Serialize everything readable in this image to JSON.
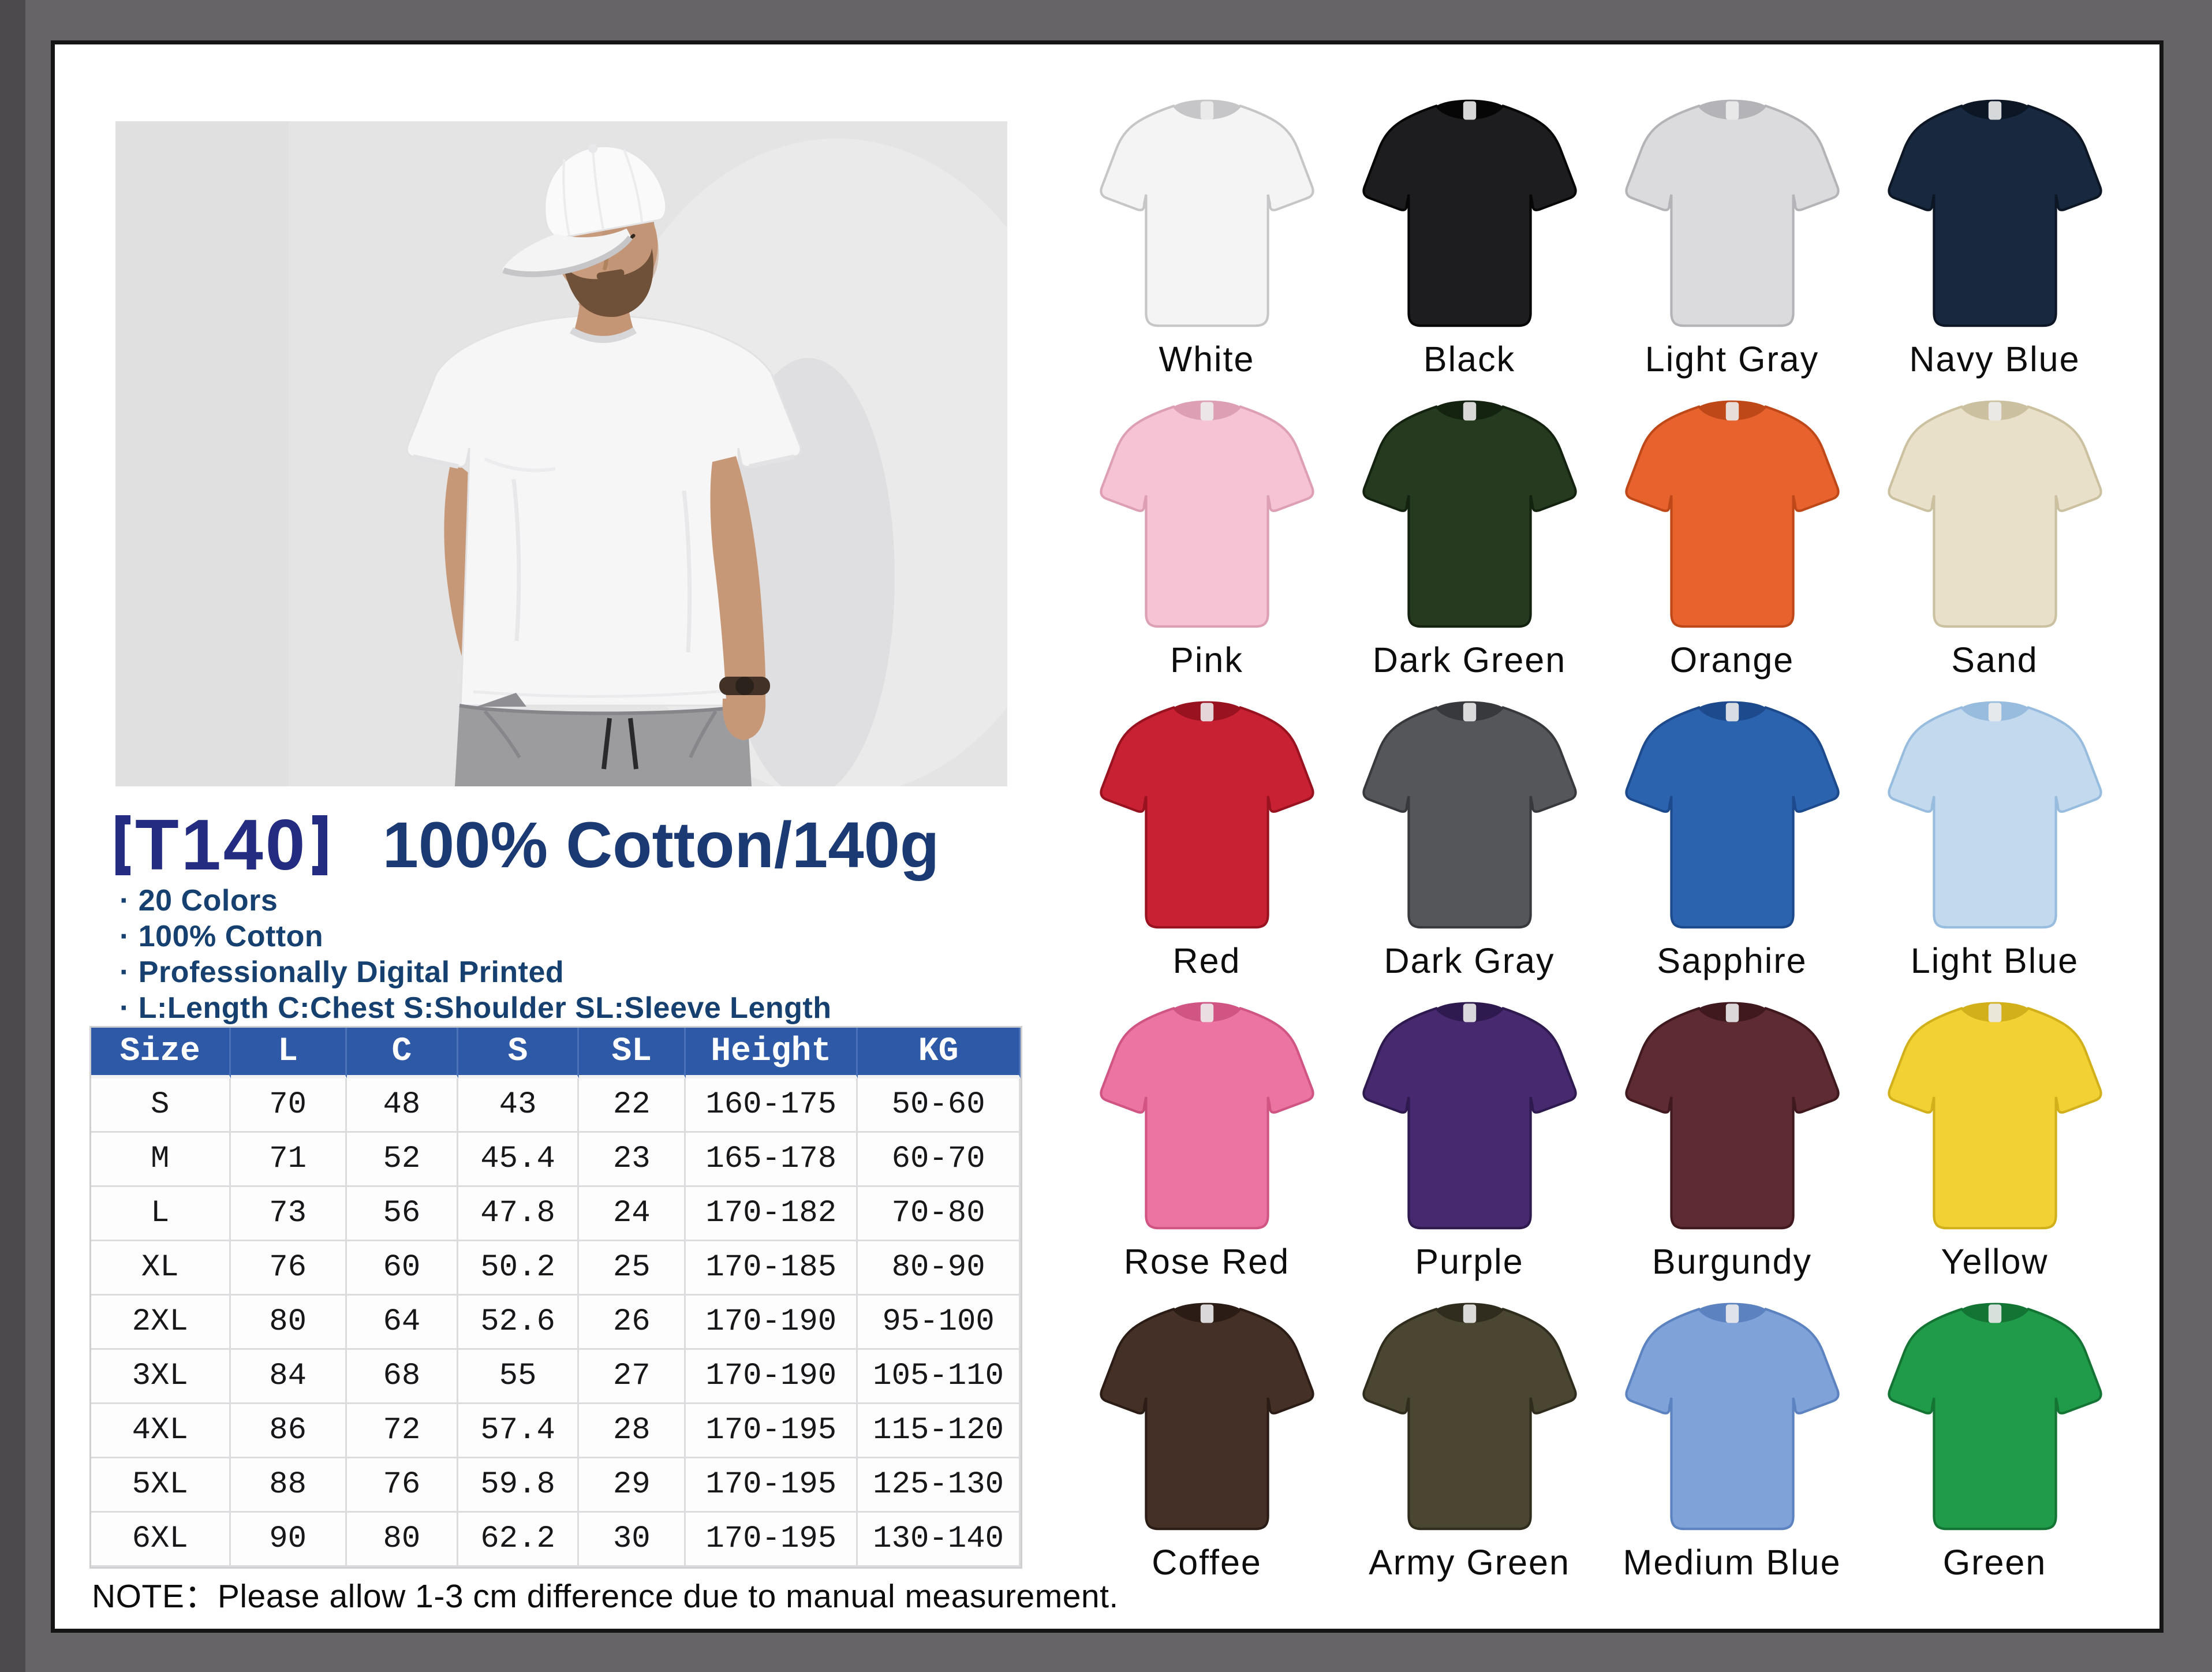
{
  "frame": {
    "background": "#666466",
    "page_background": "#ffffff",
    "border_color": "#151515"
  },
  "header": {
    "code_full": "【T140】",
    "code": "T140",
    "spec": "100% Cotton/140g",
    "code_color": "#232c80",
    "spec_color": "#1b3a74"
  },
  "bullets": [
    "· 20 Colors",
    "· 100% Cotton",
    "· Professionally Digital Printed",
    "· L:Length C:Chest S:Shoulder SL:Sleeve Length"
  ],
  "photo": {
    "description": "Male model in white baseball cap and plain white T-shirt with gray pants",
    "background": "#e4e4e5"
  },
  "size_table": {
    "header_bg": "#2e59a7",
    "header_text_color": "#ffffff",
    "columns": [
      "Size",
      "L",
      "C",
      "S",
      "SL",
      "Height",
      "KG"
    ],
    "rows": [
      [
        "S",
        "70",
        "48",
        "43",
        "22",
        "160-175",
        "50-60"
      ],
      [
        "M",
        "71",
        "52",
        "45.4",
        "23",
        "165-178",
        "60-70"
      ],
      [
        "L",
        "73",
        "56",
        "47.8",
        "24",
        "170-182",
        "70-80"
      ],
      [
        "XL",
        "76",
        "60",
        "50.2",
        "25",
        "170-185",
        "80-90"
      ],
      [
        "2XL",
        "80",
        "64",
        "52.6",
        "26",
        "170-190",
        "95-100"
      ],
      [
        "3XL",
        "84",
        "68",
        "55",
        "27",
        "170-190",
        "105-110"
      ],
      [
        "4XL",
        "86",
        "72",
        "57.4",
        "28",
        "170-195",
        "115-120"
      ],
      [
        "5XL",
        "88",
        "76",
        "59.8",
        "29",
        "170-195",
        "125-130"
      ],
      [
        "6XL",
        "90",
        "80",
        "62.2",
        "30",
        "170-195",
        "130-140"
      ]
    ]
  },
  "note": "NOTE：Please allow 1-3 cm difference due to manual measurement.",
  "colors": [
    {
      "label": "White",
      "fill": "#f4f4f4",
      "edge": "#c6c6c8"
    },
    {
      "label": "Black",
      "fill": "#1d1c1e",
      "edge": "#060606"
    },
    {
      "label": "Light Gray",
      "fill": "#dbdbdd",
      "edge": "#b4b4b8"
    },
    {
      "label": "Navy Blue",
      "fill": "#18293f",
      "edge": "#0c1624"
    },
    {
      "label": "Pink",
      "fill": "#f5c3d3",
      "edge": "#dc9fb4"
    },
    {
      "label": "Dark Green",
      "fill": "#253a1f",
      "edge": "#142310"
    },
    {
      "label": "Orange",
      "fill": "#e7622d",
      "edge": "#bf4819"
    },
    {
      "label": "Sand",
      "fill": "#e8e0c9",
      "edge": "#cbc0a0"
    },
    {
      "label": "Red",
      "fill": "#c92134",
      "edge": "#99121f"
    },
    {
      "label": "Dark Gray",
      "fill": "#54565a",
      "edge": "#38393d"
    },
    {
      "label": "Sapphire",
      "fill": "#2c63ae",
      "edge": "#1c4a8c"
    },
    {
      "label": "Light Blue",
      "fill": "#c2d9ee",
      "edge": "#98bcdd"
    },
    {
      "label": "Rose Red",
      "fill": "#ec74a2",
      "edge": "#d05583"
    },
    {
      "label": "Purple",
      "fill": "#46296f",
      "edge": "#2e1a4e"
    },
    {
      "label": "Burgundy",
      "fill": "#5e2b32",
      "edge": "#40191e"
    },
    {
      "label": "Yellow",
      "fill": "#f1d133",
      "edge": "#d2b01c"
    },
    {
      "label": "Coffee",
      "fill": "#453027",
      "edge": "#2b1d16"
    },
    {
      "label": "Army Green",
      "fill": "#4a4631",
      "edge": "#302d1e"
    },
    {
      "label": "Medium Blue",
      "fill": "#7fa3d9",
      "edge": "#5c83c0"
    },
    {
      "label": "Green",
      "fill": "#209b4a",
      "edge": "#137434"
    }
  ]
}
